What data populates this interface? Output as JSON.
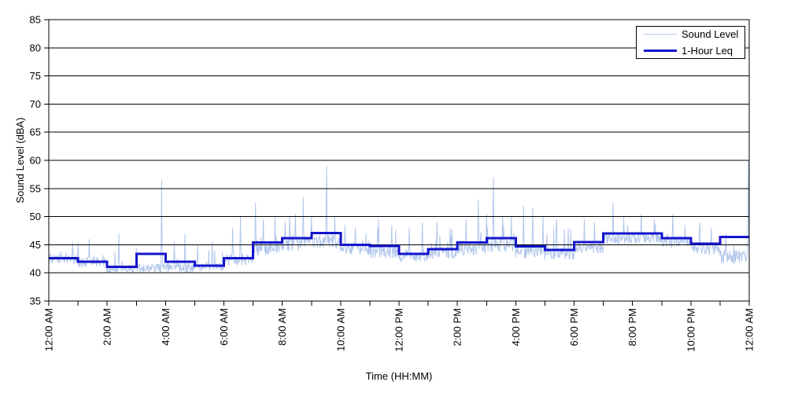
{
  "chart_data": {
    "type": "line",
    "title": "",
    "xlabel": "Time (HH:MM)",
    "ylabel": "Sound Level (dBA)",
    "ylim": [
      35,
      85
    ],
    "xlim_hours": [
      0,
      24
    ],
    "grid": "horizontal-on",
    "legend_position": "top-right-inside",
    "yticks": [
      35,
      40,
      45,
      50,
      55,
      60,
      65,
      70,
      75,
      80,
      85
    ],
    "xticks": [
      {
        "hour": 0,
        "label": "12:00 AM"
      },
      {
        "hour": 2,
        "label": "2:00 AM"
      },
      {
        "hour": 4,
        "label": "4:00 AM"
      },
      {
        "hour": 6,
        "label": "6:00 AM"
      },
      {
        "hour": 8,
        "label": "8:00 AM"
      },
      {
        "hour": 10,
        "label": "10:00 AM"
      },
      {
        "hour": 12,
        "label": "12:00 PM"
      },
      {
        "hour": 14,
        "label": "2:00 PM"
      },
      {
        "hour": 16,
        "label": "4:00 PM"
      },
      {
        "hour": 18,
        "label": "6:00 PM"
      },
      {
        "hour": 20,
        "label": "8:00 PM"
      },
      {
        "hour": 22,
        "label": "10:00 PM"
      },
      {
        "hour": 24,
        "label": "12:00 AM"
      }
    ],
    "minor_xtick_every_hours": 1,
    "legend": [
      {
        "label": "Sound Level",
        "color": "#b3c7ec",
        "line_width": 1
      },
      {
        "label": "1-Hour Leq",
        "color": "#1414cc",
        "line_width": 3
      }
    ],
    "colors": {
      "sound_level": "#b3c7ec",
      "leq": "#1414cc",
      "grid": "#000000",
      "axis": "#000000",
      "background": "#ffffff"
    },
    "series": [
      {
        "name": "Sound Level",
        "type": "noisy-line",
        "description": "high-frequency sound level trace, approx 1-minute resolution"
      },
      {
        "name": "1-Hour Leq",
        "type": "step-line",
        "description": "hourly equivalent continuous sound level, stepped per hour"
      }
    ],
    "leq_hourly": [
      42.6,
      42.0,
      41.1,
      43.4,
      42.0,
      41.3,
      42.6,
      45.4,
      46.2,
      47.1,
      45.0,
      44.8,
      43.4,
      44.2,
      45.4,
      46.2,
      44.7,
      44.1,
      45.5,
      47.0,
      47.0,
      46.2,
      45.2,
      46.4
    ],
    "sound_level_envelope": [
      {
        "hour": 0,
        "mean": 42.4,
        "amp": 0.9
      },
      {
        "hour": 1,
        "mean": 41.9,
        "amp": 0.9
      },
      {
        "hour": 2,
        "mean": 40.7,
        "amp": 0.7
      },
      {
        "hour": 3,
        "mean": 40.8,
        "amp": 0.8
      },
      {
        "hour": 4,
        "mean": 40.9,
        "amp": 0.9
      },
      {
        "hour": 5,
        "mean": 41.1,
        "amp": 0.8
      },
      {
        "hour": 6,
        "mean": 42.3,
        "amp": 1.0
      },
      {
        "hour": 7,
        "mean": 44.4,
        "amp": 1.3
      },
      {
        "hour": 8,
        "mean": 45.2,
        "amp": 1.3
      },
      {
        "hour": 9,
        "mean": 45.6,
        "amp": 1.3
      },
      {
        "hour": 10,
        "mean": 44.2,
        "amp": 1.1
      },
      {
        "hour": 11,
        "mean": 43.8,
        "amp": 1.2
      },
      {
        "hour": 12,
        "mean": 43.0,
        "amp": 1.0
      },
      {
        "hour": 13,
        "mean": 43.6,
        "amp": 1.1
      },
      {
        "hour": 14,
        "mean": 44.4,
        "amp": 1.3
      },
      {
        "hour": 15,
        "mean": 44.9,
        "amp": 1.3
      },
      {
        "hour": 16,
        "mean": 43.8,
        "amp": 1.2
      },
      {
        "hour": 17,
        "mean": 43.4,
        "amp": 1.1
      },
      {
        "hour": 18,
        "mean": 44.5,
        "amp": 1.1
      },
      {
        "hour": 19,
        "mean": 46.1,
        "amp": 1.0
      },
      {
        "hour": 20,
        "mean": 46.2,
        "amp": 0.9
      },
      {
        "hour": 21,
        "mean": 45.5,
        "amp": 1.0
      },
      {
        "hour": 22,
        "mean": 44.3,
        "amp": 1.1
      },
      {
        "hour": 23,
        "mean": 42.8,
        "amp": 1.2
      }
    ],
    "spikes": [
      {
        "t": 0.82,
        "value": 45.5
      },
      {
        "t": 1.38,
        "value": 46.0
      },
      {
        "t": 2.4,
        "value": 47.0
      },
      {
        "t": 3.0,
        "value": 44.5
      },
      {
        "t": 3.86,
        "value": 56.5
      },
      {
        "t": 4.3,
        "value": 45.5
      },
      {
        "t": 4.67,
        "value": 47.0
      },
      {
        "t": 5.1,
        "value": 45.0
      },
      {
        "t": 5.6,
        "value": 45.5
      },
      {
        "t": 6.3,
        "value": 48.0
      },
      {
        "t": 6.57,
        "value": 50.0
      },
      {
        "t": 7.09,
        "value": 52.5
      },
      {
        "t": 7.35,
        "value": 49.5
      },
      {
        "t": 7.75,
        "value": 50.0
      },
      {
        "t": 8.1,
        "value": 49.0
      },
      {
        "t": 8.45,
        "value": 50.5
      },
      {
        "t": 8.72,
        "value": 53.5
      },
      {
        "t": 9.0,
        "value": 50.0
      },
      {
        "t": 9.52,
        "value": 59.0
      },
      {
        "t": 9.8,
        "value": 50.0
      },
      {
        "t": 10.15,
        "value": 48.5
      },
      {
        "t": 10.5,
        "value": 48.0
      },
      {
        "t": 11.3,
        "value": 49.5
      },
      {
        "t": 11.75,
        "value": 48.5
      },
      {
        "t": 12.35,
        "value": 48.0
      },
      {
        "t": 12.8,
        "value": 49.0
      },
      {
        "t": 13.3,
        "value": 49.0
      },
      {
        "t": 13.75,
        "value": 48.0
      },
      {
        "t": 14.3,
        "value": 49.5
      },
      {
        "t": 14.72,
        "value": 53.0
      },
      {
        "t": 15.0,
        "value": 50.5
      },
      {
        "t": 15.24,
        "value": 57.0
      },
      {
        "t": 15.55,
        "value": 50.0
      },
      {
        "t": 15.85,
        "value": 50.0
      },
      {
        "t": 16.26,
        "value": 52.0
      },
      {
        "t": 16.59,
        "value": 51.5
      },
      {
        "t": 16.94,
        "value": 50.0
      },
      {
        "t": 17.4,
        "value": 49.5
      },
      {
        "t": 17.8,
        "value": 48.0
      },
      {
        "t": 18.35,
        "value": 49.5
      },
      {
        "t": 18.7,
        "value": 49.0
      },
      {
        "t": 19.33,
        "value": 52.5
      },
      {
        "t": 19.7,
        "value": 50.0
      },
      {
        "t": 20.3,
        "value": 50.5
      },
      {
        "t": 20.75,
        "value": 49.5
      },
      {
        "t": 21.38,
        "value": 50.5
      },
      {
        "t": 21.8,
        "value": 48.5
      },
      {
        "t": 22.3,
        "value": 49.0
      },
      {
        "t": 22.7,
        "value": 48.0
      },
      {
        "t": 23.2,
        "value": 47.0
      },
      {
        "t": 23.97,
        "value": 60.0
      }
    ]
  }
}
